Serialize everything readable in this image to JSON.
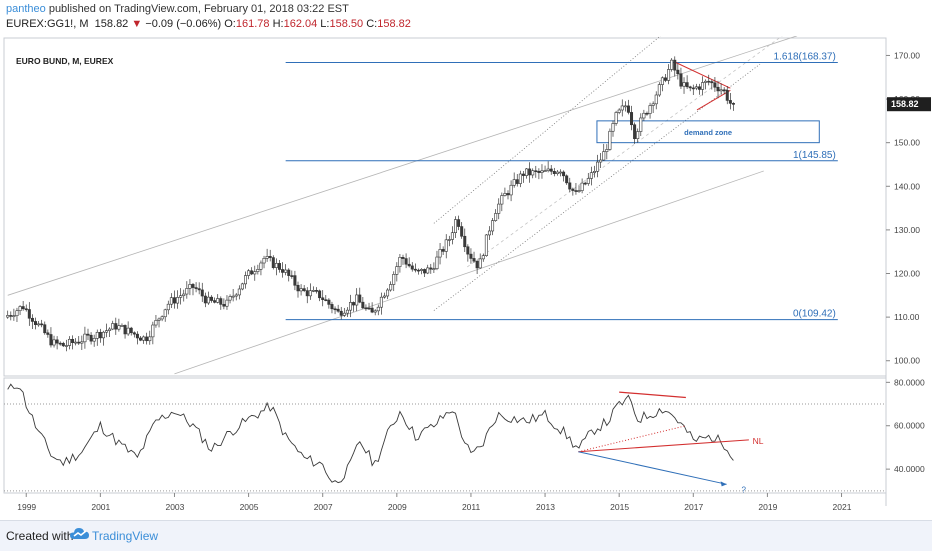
{
  "header": {
    "user": "pantheo",
    "published": " published on TradingView.com, February 01, 2018 03:22 EST",
    "symbol": "EUREX:GG1!, M",
    "last": "158.82",
    "down_arrow": "▼",
    "change": "−0.09 (−0.06%)",
    "o_label": "O:",
    "o_value": "161.78",
    "h_label": "H:",
    "h_value": "162.04",
    "l_label": "L:",
    "l_value": "158.50",
    "c_label": "C:",
    "c_value": "158.82"
  },
  "footer": {
    "created_with": "Created with",
    "brand": "TradingView"
  },
  "colors": {
    "up": "#3d3d3d",
    "down": "#6a6a6a",
    "blue": "#2f6fb8",
    "red": "#d32f2f",
    "grey": "#9a9a9a",
    "price_box": "#1f1f1f"
  },
  "chart_data": [
    {
      "type": "candlestick",
      "title": "EURO BUND, M, EUREX",
      "price_axis": {
        "ticks": [
          100,
          110,
          120,
          130,
          140,
          150,
          160,
          170
        ],
        "tick_labels": [
          "100.00",
          "110.00",
          "120.00",
          "130.00",
          "140.00",
          "150.00",
          "160.00",
          "170.00"
        ],
        "range": [
          96.5,
          174
        ]
      },
      "x_axis": {
        "ticks": [
          "1999",
          "2001",
          "2003",
          "2005",
          "2007",
          "2009",
          "2011",
          "2013",
          "2015",
          "2017",
          "2019",
          "2021"
        ],
        "range": [
          1998.4,
          2022.2
        ]
      },
      "last_price": "158.82",
      "keypoints": [
        [
          1998.5,
          110
        ],
        [
          1999.0,
          112.5
        ],
        [
          1999.8,
          104
        ],
        [
          2000.1,
          103.5
        ],
        [
          2001.0,
          106
        ],
        [
          2001.5,
          108
        ],
        [
          2002.3,
          105
        ],
        [
          2002.9,
          113
        ],
        [
          2003.6,
          117
        ],
        [
          2004.0,
          113.5
        ],
        [
          2004.5,
          113
        ],
        [
          2005.0,
          119
        ],
        [
          2005.5,
          123.5
        ],
        [
          2006.0,
          121
        ],
        [
          2006.5,
          116
        ],
        [
          2007.0,
          115
        ],
        [
          2007.5,
          111
        ],
        [
          2008.0,
          114
        ],
        [
          2008.4,
          110.5
        ],
        [
          2008.9,
          118
        ],
        [
          2009.2,
          124
        ],
        [
          2009.6,
          120
        ],
        [
          2010.0,
          121
        ],
        [
          2010.5,
          128
        ],
        [
          2010.7,
          133
        ],
        [
          2011.0,
          125
        ],
        [
          2011.3,
          121.5
        ],
        [
          2011.7,
          134
        ],
        [
          2012.0,
          138
        ],
        [
          2012.5,
          143
        ],
        [
          2013.0,
          143
        ],
        [
          2013.5,
          144
        ],
        [
          2013.9,
          138
        ],
        [
          2014.3,
          142
        ],
        [
          2014.7,
          148
        ],
        [
          2015.0,
          156
        ],
        [
          2015.3,
          159
        ],
        [
          2015.5,
          152
        ],
        [
          2015.8,
          157
        ],
        [
          2016.2,
          163
        ],
        [
          2016.5,
          168
        ],
        [
          2016.8,
          163
        ],
        [
          2017.0,
          162
        ],
        [
          2017.5,
          164
        ],
        [
          2017.9,
          162
        ],
        [
          2018.1,
          158.82
        ]
      ],
      "annotations": {
        "fib_lines": [
          {
            "label": "1.618(168.37)",
            "price": 168.37
          },
          {
            "label": "1(145.85)",
            "price": 145.85
          },
          {
            "label": "0(109.42)",
            "price": 109.42
          }
        ],
        "demand_zone": {
          "label": "demand zone",
          "price_low": 150,
          "price_high": 155,
          "x_from": 2014.4,
          "x_to": 2020.4
        }
      }
    },
    {
      "type": "line",
      "indicator": "RSI",
      "y_axis": {
        "ticks": [
          40,
          60,
          80
        ],
        "tick_labels": [
          "40.0000",
          "60.0000",
          "80.0000"
        ],
        "range": [
          29,
          82
        ],
        "dotted_levels": [
          70,
          30
        ]
      },
      "keypoints": [
        [
          1998.5,
          76
        ],
        [
          1998.8,
          80
        ],
        [
          1999.0,
          70
        ],
        [
          1999.3,
          58
        ],
        [
          1999.7,
          46
        ],
        [
          2000.0,
          43
        ],
        [
          2000.5,
          48
        ],
        [
          2001.0,
          60
        ],
        [
          2001.5,
          52
        ],
        [
          2002.0,
          45
        ],
        [
          2002.5,
          62
        ],
        [
          2003.0,
          67
        ],
        [
          2003.5,
          60
        ],
        [
          2004.0,
          49
        ],
        [
          2004.5,
          57
        ],
        [
          2005.0,
          63
        ],
        [
          2005.6,
          69
        ],
        [
          2006.0,
          55
        ],
        [
          2006.5,
          45
        ],
        [
          2007.0,
          42
        ],
        [
          2007.3,
          33
        ],
        [
          2007.7,
          40
        ],
        [
          2008.0,
          53
        ],
        [
          2008.4,
          42
        ],
        [
          2008.8,
          58
        ],
        [
          2009.1,
          67
        ],
        [
          2009.5,
          55
        ],
        [
          2010.0,
          60
        ],
        [
          2010.5,
          68
        ],
        [
          2010.8,
          54
        ],
        [
          2011.0,
          46
        ],
        [
          2011.3,
          51
        ],
        [
          2011.7,
          65
        ],
        [
          2012.0,
          64
        ],
        [
          2012.5,
          62
        ],
        [
          2013.0,
          65
        ],
        [
          2013.5,
          57
        ],
        [
          2013.9,
          49
        ],
        [
          2014.3,
          58
        ],
        [
          2014.7,
          62
        ],
        [
          2015.0,
          70
        ],
        [
          2015.3,
          72
        ],
        [
          2015.5,
          63
        ],
        [
          2015.8,
          65
        ],
        [
          2016.2,
          68
        ],
        [
          2016.5,
          64
        ],
        [
          2016.8,
          58
        ],
        [
          2017.0,
          53
        ],
        [
          2017.5,
          55
        ],
        [
          2017.9,
          51
        ],
        [
          2018.1,
          45
        ]
      ],
      "annotations": {
        "nl_label": "NL",
        "question_mark": "?"
      }
    }
  ]
}
